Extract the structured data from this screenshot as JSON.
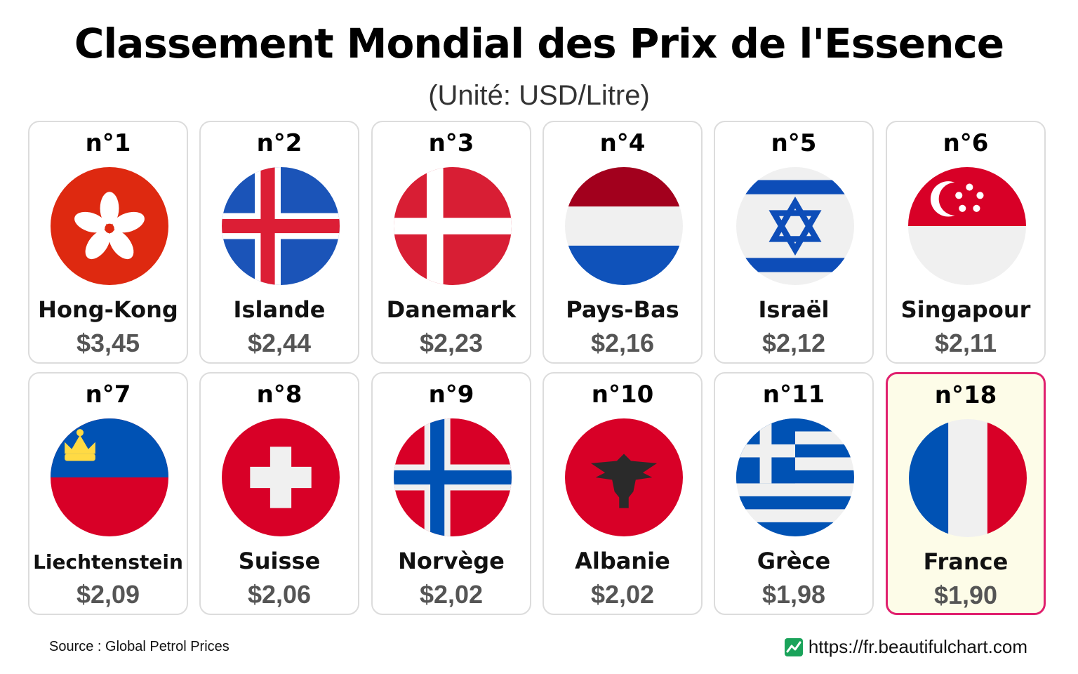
{
  "title": "Classement Mondial des Prix de l'Essence",
  "subtitle": "(Unité: USD/Litre)",
  "footer": {
    "source": "Source : Global Petrol Prices",
    "site": "https://fr.beautifulchart.com"
  },
  "chart_data": {
    "type": "table",
    "title": "Classement Mondial des Prix de l'Essence",
    "unit": "(Unité: USD/Litre)",
    "entries": [
      {
        "rank": "n°1",
        "country": "Hong-Kong",
        "price": "$3,45",
        "value": 3.45,
        "flag": "hong-kong-flag-icon"
      },
      {
        "rank": "n°2",
        "country": "Islande",
        "price": "$2,44",
        "value": 2.44,
        "flag": "iceland-flag-icon"
      },
      {
        "rank": "n°3",
        "country": "Danemark",
        "price": "$2,23",
        "value": 2.23,
        "flag": "denmark-flag-icon"
      },
      {
        "rank": "n°4",
        "country": "Pays-Bas",
        "price": "$2,16",
        "value": 2.16,
        "flag": "netherlands-flag-icon"
      },
      {
        "rank": "n°5",
        "country": "Israël",
        "price": "$2,12",
        "value": 2.12,
        "flag": "israel-flag-icon"
      },
      {
        "rank": "n°6",
        "country": "Singapour",
        "price": "$2,11",
        "value": 2.11,
        "flag": "singapore-flag-icon"
      },
      {
        "rank": "n°7",
        "country": "Liechtenstein",
        "price": "$2,09",
        "value": 2.09,
        "flag": "liechtenstein-flag-icon"
      },
      {
        "rank": "n°8",
        "country": "Suisse",
        "price": "$2,06",
        "value": 2.06,
        "flag": "switzerland-flag-icon"
      },
      {
        "rank": "n°9",
        "country": "Norvège",
        "price": "$2,02",
        "value": 2.02,
        "flag": "norway-flag-icon"
      },
      {
        "rank": "n°10",
        "country": "Albanie",
        "price": "$2,02",
        "value": 2.02,
        "flag": "albania-flag-icon"
      },
      {
        "rank": "n°11",
        "country": "Grèce",
        "price": "$1,98",
        "value": 1.98,
        "flag": "greece-flag-icon"
      },
      {
        "rank": "n°18",
        "country": "France",
        "price": "$1,90",
        "value": 1.9,
        "flag": "france-flag-icon",
        "highlight": true
      }
    ]
  },
  "colors": {
    "highlight_border": "#e0206e",
    "highlight_background": "#fdfce8",
    "card_border": "#dcdcdc",
    "price_text": "#555555"
  }
}
